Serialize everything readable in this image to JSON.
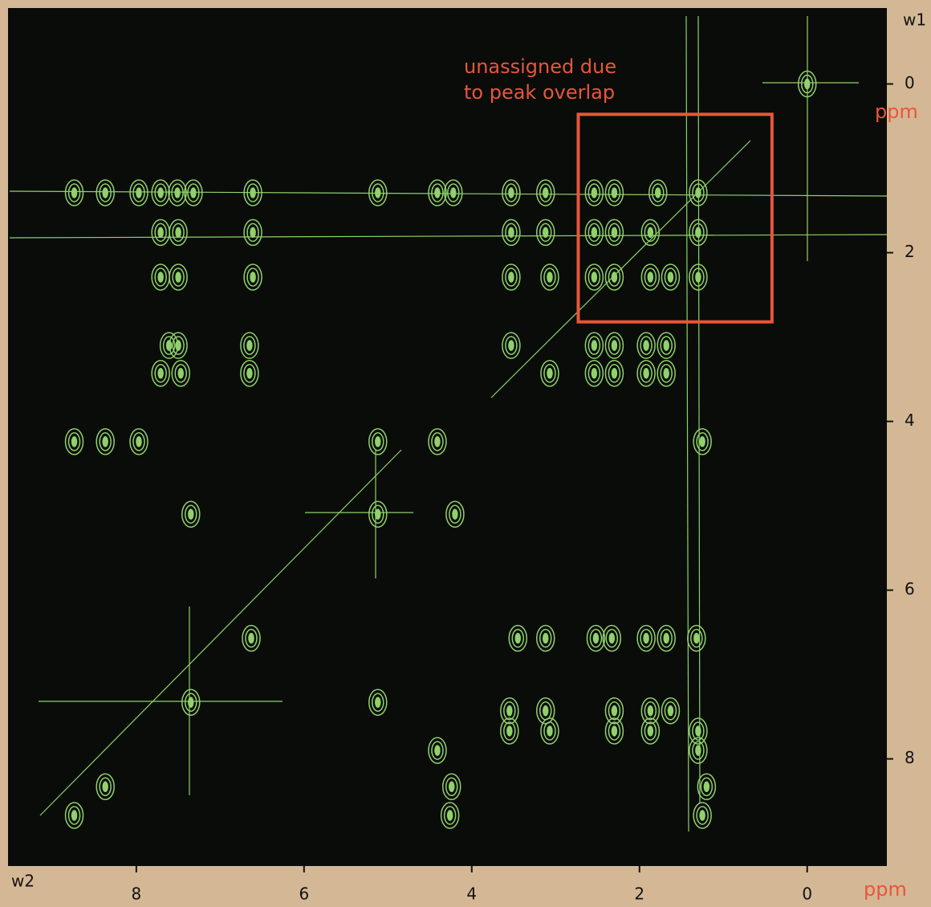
{
  "chart_data": {
    "type": "contour",
    "x_axis_name": "w2",
    "y_axis_name": "w1",
    "x_label": "ppm",
    "y_label": "ppm",
    "annotation": [
      "unassigned due",
      "to peak overlap"
    ],
    "highlight_box": {
      "x": [
        2.73,
        0.42
      ],
      "y": [
        0.36,
        2.82
      ],
      "color": "#e8563a"
    },
    "xlim": [
      9.53,
      -0.95
    ],
    "ylim": [
      -0.9,
      9.27
    ],
    "xticks": [
      8,
      6,
      4,
      2,
      0
    ],
    "yticks": [
      0,
      2,
      4,
      6,
      8
    ],
    "color": "#8fd16a",
    "x": [
      8.74,
      8.37,
      7.97,
      7.71,
      7.51,
      7.32,
      6.61,
      5.12,
      4.41,
      4.22,
      3.53,
      3.12,
      2.54,
      2.3,
      1.78,
      1.3,
      7.71,
      7.5,
      6.61,
      3.53,
      3.12,
      2.54,
      2.3,
      1.87,
      1.3,
      7.71,
      7.5,
      6.61,
      3.53,
      3.07,
      2.54,
      2.3,
      1.87,
      1.63,
      1.3,
      7.61,
      7.5,
      6.65,
      3.53,
      2.54,
      2.3,
      1.92,
      1.68,
      7.71,
      7.47,
      6.65,
      3.07,
      2.54,
      2.3,
      1.92,
      1.68,
      8.74,
      8.37,
      7.97,
      5.12,
      4.41,
      1.25,
      7.35,
      5.12,
      4.2,
      6.63,
      3.45,
      3.12,
      2.52,
      2.33,
      1.92,
      1.68,
      1.32,
      7.35,
      5.12,
      3.55,
      3.12,
      2.3,
      1.87,
      1.63,
      3.55,
      3.07,
      2.3,
      1.87,
      1.3,
      4.41,
      1.3,
      8.37,
      4.24,
      1.2,
      8.74,
      4.26,
      1.25,
      0
    ],
    "y": [
      1.29,
      1.29,
      1.29,
      1.29,
      1.29,
      1.29,
      1.29,
      1.29,
      1.29,
      1.29,
      1.29,
      1.29,
      1.29,
      1.29,
      1.29,
      1.29,
      1.76,
      1.76,
      1.76,
      1.76,
      1.76,
      1.76,
      1.76,
      1.76,
      1.76,
      2.29,
      2.29,
      2.29,
      2.29,
      2.29,
      2.29,
      2.29,
      2.29,
      2.29,
      2.29,
      3.1,
      3.1,
      3.1,
      3.1,
      3.1,
      3.1,
      3.1,
      3.1,
      3.43,
      3.43,
      3.43,
      3.43,
      3.43,
      3.43,
      3.43,
      3.43,
      4.24,
      4.24,
      4.24,
      4.24,
      4.24,
      4.24,
      5.1,
      5.1,
      5.1,
      6.57,
      6.57,
      6.57,
      6.57,
      6.57,
      6.57,
      6.57,
      6.57,
      7.33,
      7.33,
      7.43,
      7.43,
      7.43,
      7.43,
      7.43,
      7.67,
      7.67,
      7.67,
      7.67,
      7.67,
      7.9,
      7.9,
      8.33,
      8.33,
      8.33,
      8.67,
      8.67,
      8.67,
      0
    ]
  }
}
